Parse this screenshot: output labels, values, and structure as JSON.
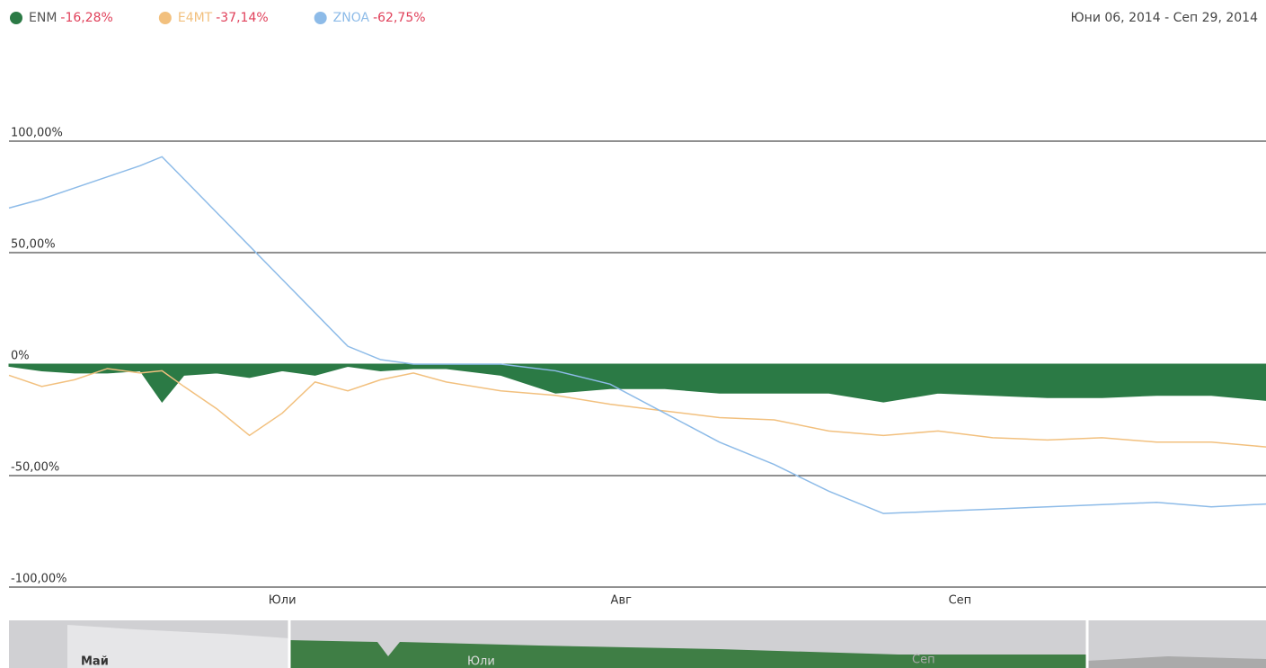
{
  "chart_data": {
    "type": "line",
    "date_range": "Юни 06, 2014 - Сеп 29, 2014",
    "x": [
      0,
      3,
      6,
      9,
      12,
      14,
      16,
      19,
      22,
      25,
      28,
      31,
      34,
      37,
      40,
      45,
      50,
      55,
      60,
      65,
      70,
      75,
      80,
      85,
      90,
      95,
      100,
      105,
      110,
      115
    ],
    "xlim": [
      0,
      115
    ],
    "xticks": [
      {
        "value": 25,
        "label": "Юли"
      },
      {
        "value": 56,
        "label": "Авг"
      },
      {
        "value": 87,
        "label": "Сеп"
      }
    ],
    "ylim": [
      -100,
      100
    ],
    "yticks": [
      {
        "value": 100,
        "label": "100,00%"
      },
      {
        "value": 50,
        "label": "50,00%"
      },
      {
        "value": 0,
        "label": "0%"
      },
      {
        "value": -50,
        "label": "-50,00%"
      },
      {
        "value": -100,
        "label": "-100,00%"
      }
    ],
    "grid": true,
    "series": [
      {
        "name": "ENM",
        "change": "-16,28%",
        "color": "#2b7a45",
        "style": "area",
        "values": [
          -1,
          -3,
          -4,
          -4,
          -3,
          -17,
          -5,
          -4,
          -6,
          -3,
          -5,
          -1,
          -3,
          -2,
          -2,
          -5,
          -13,
          -11,
          -11,
          -13,
          -13,
          -13,
          -17,
          -13,
          -14,
          -15,
          -15,
          -14,
          -14,
          -16.28
        ]
      },
      {
        "name": "E4MT",
        "change": "-37,14%",
        "color": "#f2c07e",
        "style": "line",
        "values": [
          -5,
          -10,
          -7,
          -2,
          -4,
          -3,
          -10,
          -20,
          -32,
          -22,
          -8,
          -12,
          -7,
          -4,
          -8,
          -12,
          -14,
          -18,
          -21,
          -24,
          -25,
          -30,
          -32,
          -30,
          -33,
          -34,
          -33,
          -35,
          -35,
          -37.14
        ]
      },
      {
        "name": "ZNOA",
        "change": "-62,75%",
        "color": "#8dbbe8",
        "style": "line",
        "values": [
          70,
          74,
          79,
          84,
          89,
          93,
          83,
          68,
          53,
          38,
          23,
          8,
          2,
          0,
          0,
          0,
          -3,
          -9,
          -22,
          -35,
          -45,
          -57,
          -67,
          -66,
          -65,
          -64,
          -63,
          -62,
          -64,
          -62.75
        ]
      }
    ],
    "navigator": {
      "labels": [
        "Май",
        "Юли",
        "Сеп"
      ]
    }
  }
}
